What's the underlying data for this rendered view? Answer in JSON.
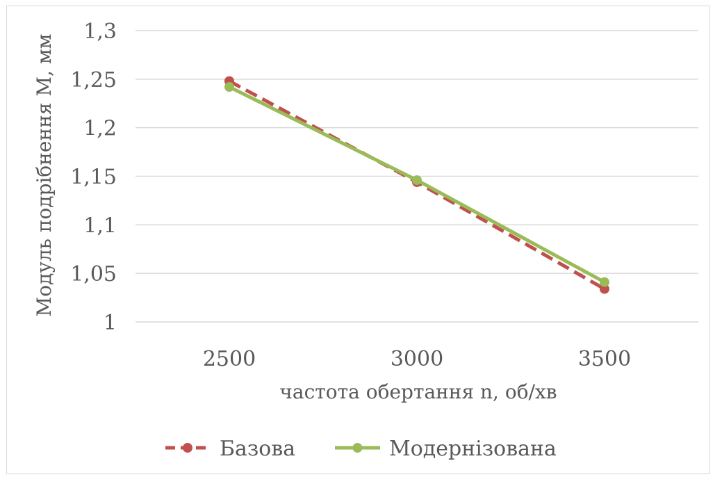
{
  "chart_data": {
    "type": "line",
    "x": [
      2500,
      3000,
      3500
    ],
    "categories": [
      "2500",
      "3000",
      "3500"
    ],
    "xlabel": "частота обертання n, об/хв",
    "ylabel": "Модуль подрібнення M, мм",
    "ylim": [
      1,
      1.3
    ],
    "yticks": [
      "1",
      "1,05",
      "1,1",
      "1,15",
      "1,2",
      "1,25",
      "1,3"
    ],
    "ytick_values": [
      1,
      1.05,
      1.1,
      1.15,
      1.2,
      1.25,
      1.3
    ],
    "grid": true,
    "legend": "bottom",
    "series": [
      {
        "name": "Базова",
        "values": [
          1.248,
          1.144,
          1.034
        ],
        "color": "#c0504d",
        "dash": "dashed",
        "marker": "circle"
      },
      {
        "name": "Модернізована",
        "values": [
          1.242,
          1.146,
          1.041
        ],
        "color": "#9bbb59",
        "dash": "solid",
        "marker": "circle"
      }
    ]
  }
}
